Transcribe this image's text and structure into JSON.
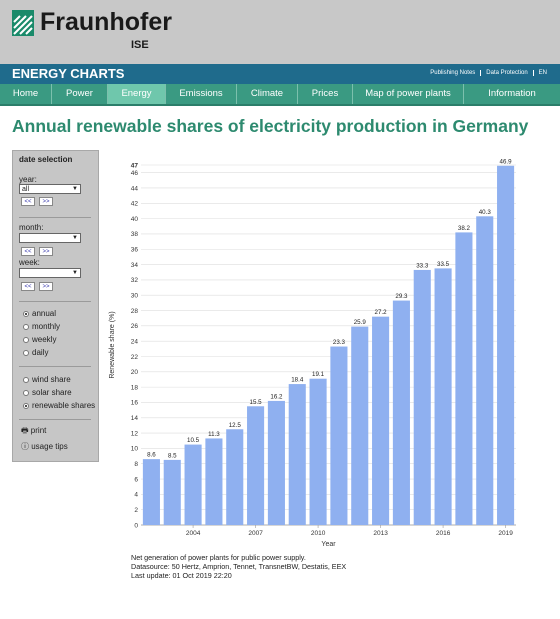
{
  "header": {
    "logo_text": "Fraunhofer",
    "logo_sub": "ISE",
    "app_title": "ENERGY CHARTS",
    "links": [
      "Publishing Notes",
      "Data Protection",
      "EN"
    ]
  },
  "nav": [
    {
      "label": "Home",
      "active": false
    },
    {
      "label": "Power",
      "active": false
    },
    {
      "label": "Energy",
      "active": true
    },
    {
      "label": "Emissions",
      "active": false
    },
    {
      "label": "Climate",
      "active": false
    },
    {
      "label": "Prices",
      "active": false
    },
    {
      "label": "Map of power plants",
      "active": false
    },
    {
      "label": "Information",
      "active": false
    }
  ],
  "page_title": "Annual renewable shares of electricity production in Germany",
  "sidebar": {
    "heading": "date selection",
    "year_label": "year:",
    "year_value": "all",
    "month_label": "month:",
    "week_label": "week:",
    "prev_label": "<<",
    "next_label": ">>",
    "periods": [
      {
        "label": "annual",
        "selected": true
      },
      {
        "label": "monthly",
        "selected": false
      },
      {
        "label": "weekly",
        "selected": false
      },
      {
        "label": "daily",
        "selected": false
      }
    ],
    "shares": [
      {
        "label": "wind share",
        "selected": false
      },
      {
        "label": "solar share",
        "selected": false
      },
      {
        "label": "renewable shares",
        "selected": true
      }
    ],
    "print_label": "print",
    "usage_label": "usage tips"
  },
  "chart_data": {
    "type": "bar",
    "title": "Annual renewable shares of electricity production in Germany",
    "xlabel": "Year",
    "ylabel": "Renewable share (%)",
    "ylim": [
      0,
      47
    ],
    "yticks": [
      0,
      2,
      4,
      6,
      8,
      10,
      12,
      14,
      16,
      18,
      20,
      22,
      24,
      26,
      28,
      30,
      32,
      34,
      36,
      38,
      40,
      42,
      44,
      46,
      47
    ],
    "categories": [
      "2002",
      "2003",
      "2004",
      "2005",
      "2006",
      "2007",
      "2008",
      "2009",
      "2010",
      "2011",
      "2012",
      "2013",
      "2014",
      "2015",
      "2016",
      "2017",
      "2018",
      "2019"
    ],
    "xtick_labels": [
      "2004",
      "2007",
      "2010",
      "2013",
      "2016",
      "2019"
    ],
    "values": [
      8.6,
      8.5,
      10.5,
      11.3,
      12.5,
      15.5,
      16.2,
      18.4,
      19.1,
      23.3,
      25.9,
      27.2,
      29.3,
      33.3,
      33.5,
      38.2,
      40.3,
      46.9
    ],
    "bar_color": "#8fb0f0",
    "grid": true
  },
  "footnote": [
    "Net generation of power plants for public power supply.",
    "Datasource: 50 Hertz, Amprion, Tennet, TransnetBW, Destatis, EEX",
    "Last update: 01 Oct 2019 22:20"
  ]
}
